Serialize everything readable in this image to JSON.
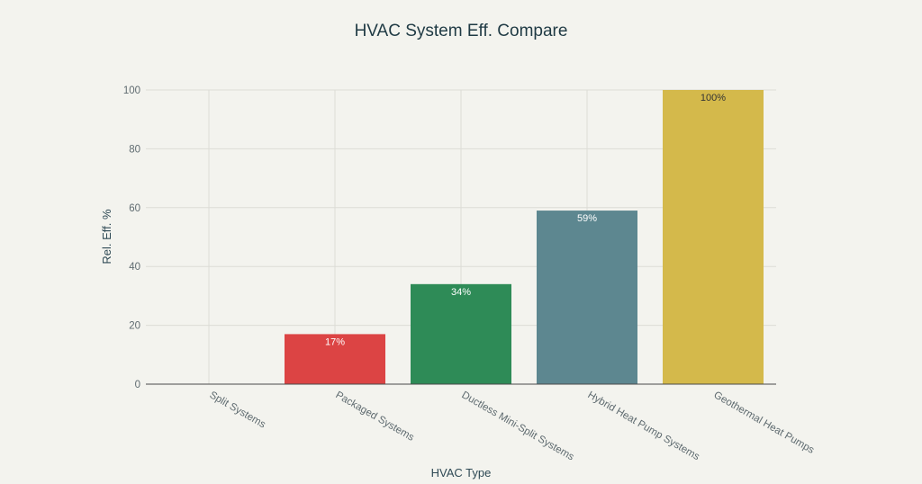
{
  "chart_data": {
    "type": "bar",
    "title": "HVAC System Eff. Compare",
    "xlabel": "HVAC Type",
    "ylabel": "Rel. Eff. %",
    "categories": [
      "Split Systems",
      "Packaged Systems",
      "Ductless Mini-Split Systems",
      "Hybrid Heat Pump Systems",
      "Geothermal Heat Pumps"
    ],
    "values": [
      0,
      17,
      34,
      59,
      100
    ],
    "data_labels": [
      "",
      "17%",
      "34%",
      "59%",
      "100%"
    ],
    "colors": [
      "#1e7fb8",
      "#dc4444",
      "#2e8b57",
      "#5d8790",
      "#d4b94b"
    ],
    "label_colors": [
      "#ffffff",
      "#ffffff",
      "#ffffff",
      "#ffffff",
      "#333333"
    ],
    "ylim": [
      0,
      100
    ],
    "yticks": [
      0,
      20,
      40,
      60,
      80,
      100
    ],
    "grid": true,
    "legend": "none"
  }
}
